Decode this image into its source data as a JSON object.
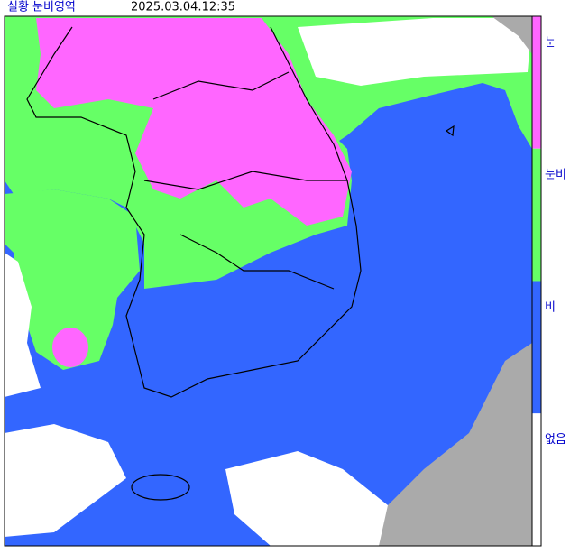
{
  "header": {
    "title": "실황 눈비영역",
    "time": "2025.03.04.12:35"
  },
  "legend": [
    {
      "label": "눈",
      "color": "#ff66ff"
    },
    {
      "label": "눈비",
      "color": "#66ff66"
    },
    {
      "label": "비",
      "color": "#3366ff"
    },
    {
      "label": "없음",
      "color": "#ffffff"
    }
  ]
}
